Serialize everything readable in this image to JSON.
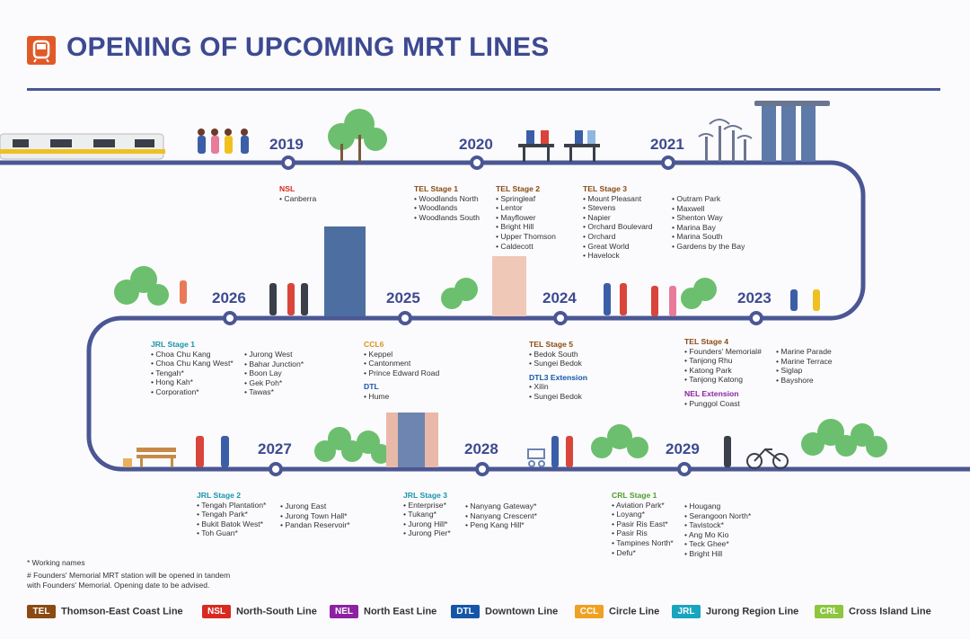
{
  "title": "OPENING OF UPCOMING MRT LINES",
  "years": [
    "2019",
    "2020",
    "2021",
    "2023",
    "2024",
    "2025",
    "2026",
    "2027",
    "2028",
    "2029"
  ],
  "groups": {
    "nsl": {
      "label": "NSL",
      "items": [
        "Canberra"
      ]
    },
    "tel1": {
      "label": "TEL Stage 1",
      "items": [
        "Woodlands North",
        "Woodlands",
        "Woodlands South"
      ]
    },
    "tel2": {
      "label": "TEL Stage 2",
      "items": [
        "Springleaf",
        "Lentor",
        "Mayflower",
        "Bright Hill",
        "Upper Thomson",
        "Caldecott"
      ]
    },
    "tel3a": {
      "label": "TEL Stage 3",
      "items": [
        "Mount Pleasant",
        "Stevens",
        "Napier",
        "Orchard Boulevard",
        "Orchard",
        "Great World",
        "Havelock"
      ]
    },
    "tel3b": {
      "items": [
        "Outram Park",
        "Maxwell",
        "Shenton Way",
        "Marina Bay",
        "Marina South",
        "Gardens by the Bay"
      ]
    },
    "jrl1a": {
      "label": "JRL Stage 1",
      "items": [
        "Choa Chu Kang",
        "Choa Chu Kang West*",
        "Tengah*",
        "Hong Kah*",
        "Corporation*"
      ]
    },
    "jrl1b": {
      "items": [
        "Jurong West",
        "Bahar Junction*",
        "Boon Lay",
        "Gek Poh*",
        "Tawas*"
      ]
    },
    "ccl6": {
      "label": "CCL6",
      "items": [
        "Keppel",
        "Cantonment",
        "Prince Edward Road"
      ]
    },
    "dtl": {
      "label": "DTL",
      "items": [
        "Hume"
      ]
    },
    "tel5": {
      "label": "TEL Stage 5",
      "items": [
        "Bedok South",
        "Sungei Bedok"
      ]
    },
    "dtl3": {
      "label": "DTL3 Extension",
      "items": [
        "Xilin",
        "Sungei Bedok"
      ]
    },
    "tel4a": {
      "label": "TEL Stage 4",
      "items": [
        "Founders' Memorial#",
        "Tanjong Rhu",
        "Katong Park",
        "Tanjong Katong"
      ]
    },
    "tel4b": {
      "items": [
        "Marine Parade",
        "Marine Terrace",
        "Siglap",
        "Bayshore"
      ]
    },
    "nelext": {
      "label": "NEL Extension",
      "items": [
        "Punggol Coast"
      ]
    },
    "jrl2a": {
      "label": "JRL Stage 2",
      "items": [
        "Tengah Plantation*",
        "Tengah Park*",
        "Bukit Batok West*",
        "Toh Guan*"
      ]
    },
    "jrl2b": {
      "items": [
        "Jurong East",
        "Jurong Town Hall*",
        "Pandan Reservoir*"
      ]
    },
    "jrl3a": {
      "label": "JRL Stage 3",
      "items": [
        "Enterprise*",
        "Tukang*",
        "Jurong Hill*",
        "Jurong Pier*"
      ]
    },
    "jrl3b": {
      "items": [
        "Nanyang Gateway*",
        "Nanyang Crescent*",
        "Peng Kang Hill*"
      ]
    },
    "crl1a": {
      "label": "CRL Stage 1",
      "items": [
        "Aviation Park*",
        "Loyang*",
        "Pasir Ris East*",
        "Pasir Ris",
        "Tampines North*",
        "Defu*"
      ]
    },
    "crl1b": {
      "items": [
        "Hougang",
        "Serangoon North*",
        "Tavistock*",
        "Ang Mo Kio",
        "Teck Ghee*",
        "Bright Hill"
      ]
    }
  },
  "notes": [
    "* Working names",
    "# Founders' Memorial MRT station will be opened in tandem",
    "with Founders' Memorial. Opening date to be advised."
  ],
  "legend": [
    {
      "code": "TEL",
      "name": "Thomson-East Coast Line",
      "color": "#8a4a12"
    },
    {
      "code": "NSL",
      "name": "North-South Line",
      "color": "#d92a20"
    },
    {
      "code": "NEL",
      "name": "North East Line",
      "color": "#8c22a0"
    },
    {
      "code": "DTL",
      "name": "Downtown Line",
      "color": "#1656a8"
    },
    {
      "code": "CCL",
      "name": "Circle Line",
      "color": "#f0a022"
    },
    {
      "code": "JRL",
      "name": "Jurong Region Line",
      "color": "#19a5c0"
    },
    {
      "code": "CRL",
      "name": "Cross Island Line",
      "color": "#8dc63f"
    }
  ],
  "colors": {
    "track": "#4b5794",
    "accent": "#e05a28",
    "tree": "#6cbf6e"
  }
}
